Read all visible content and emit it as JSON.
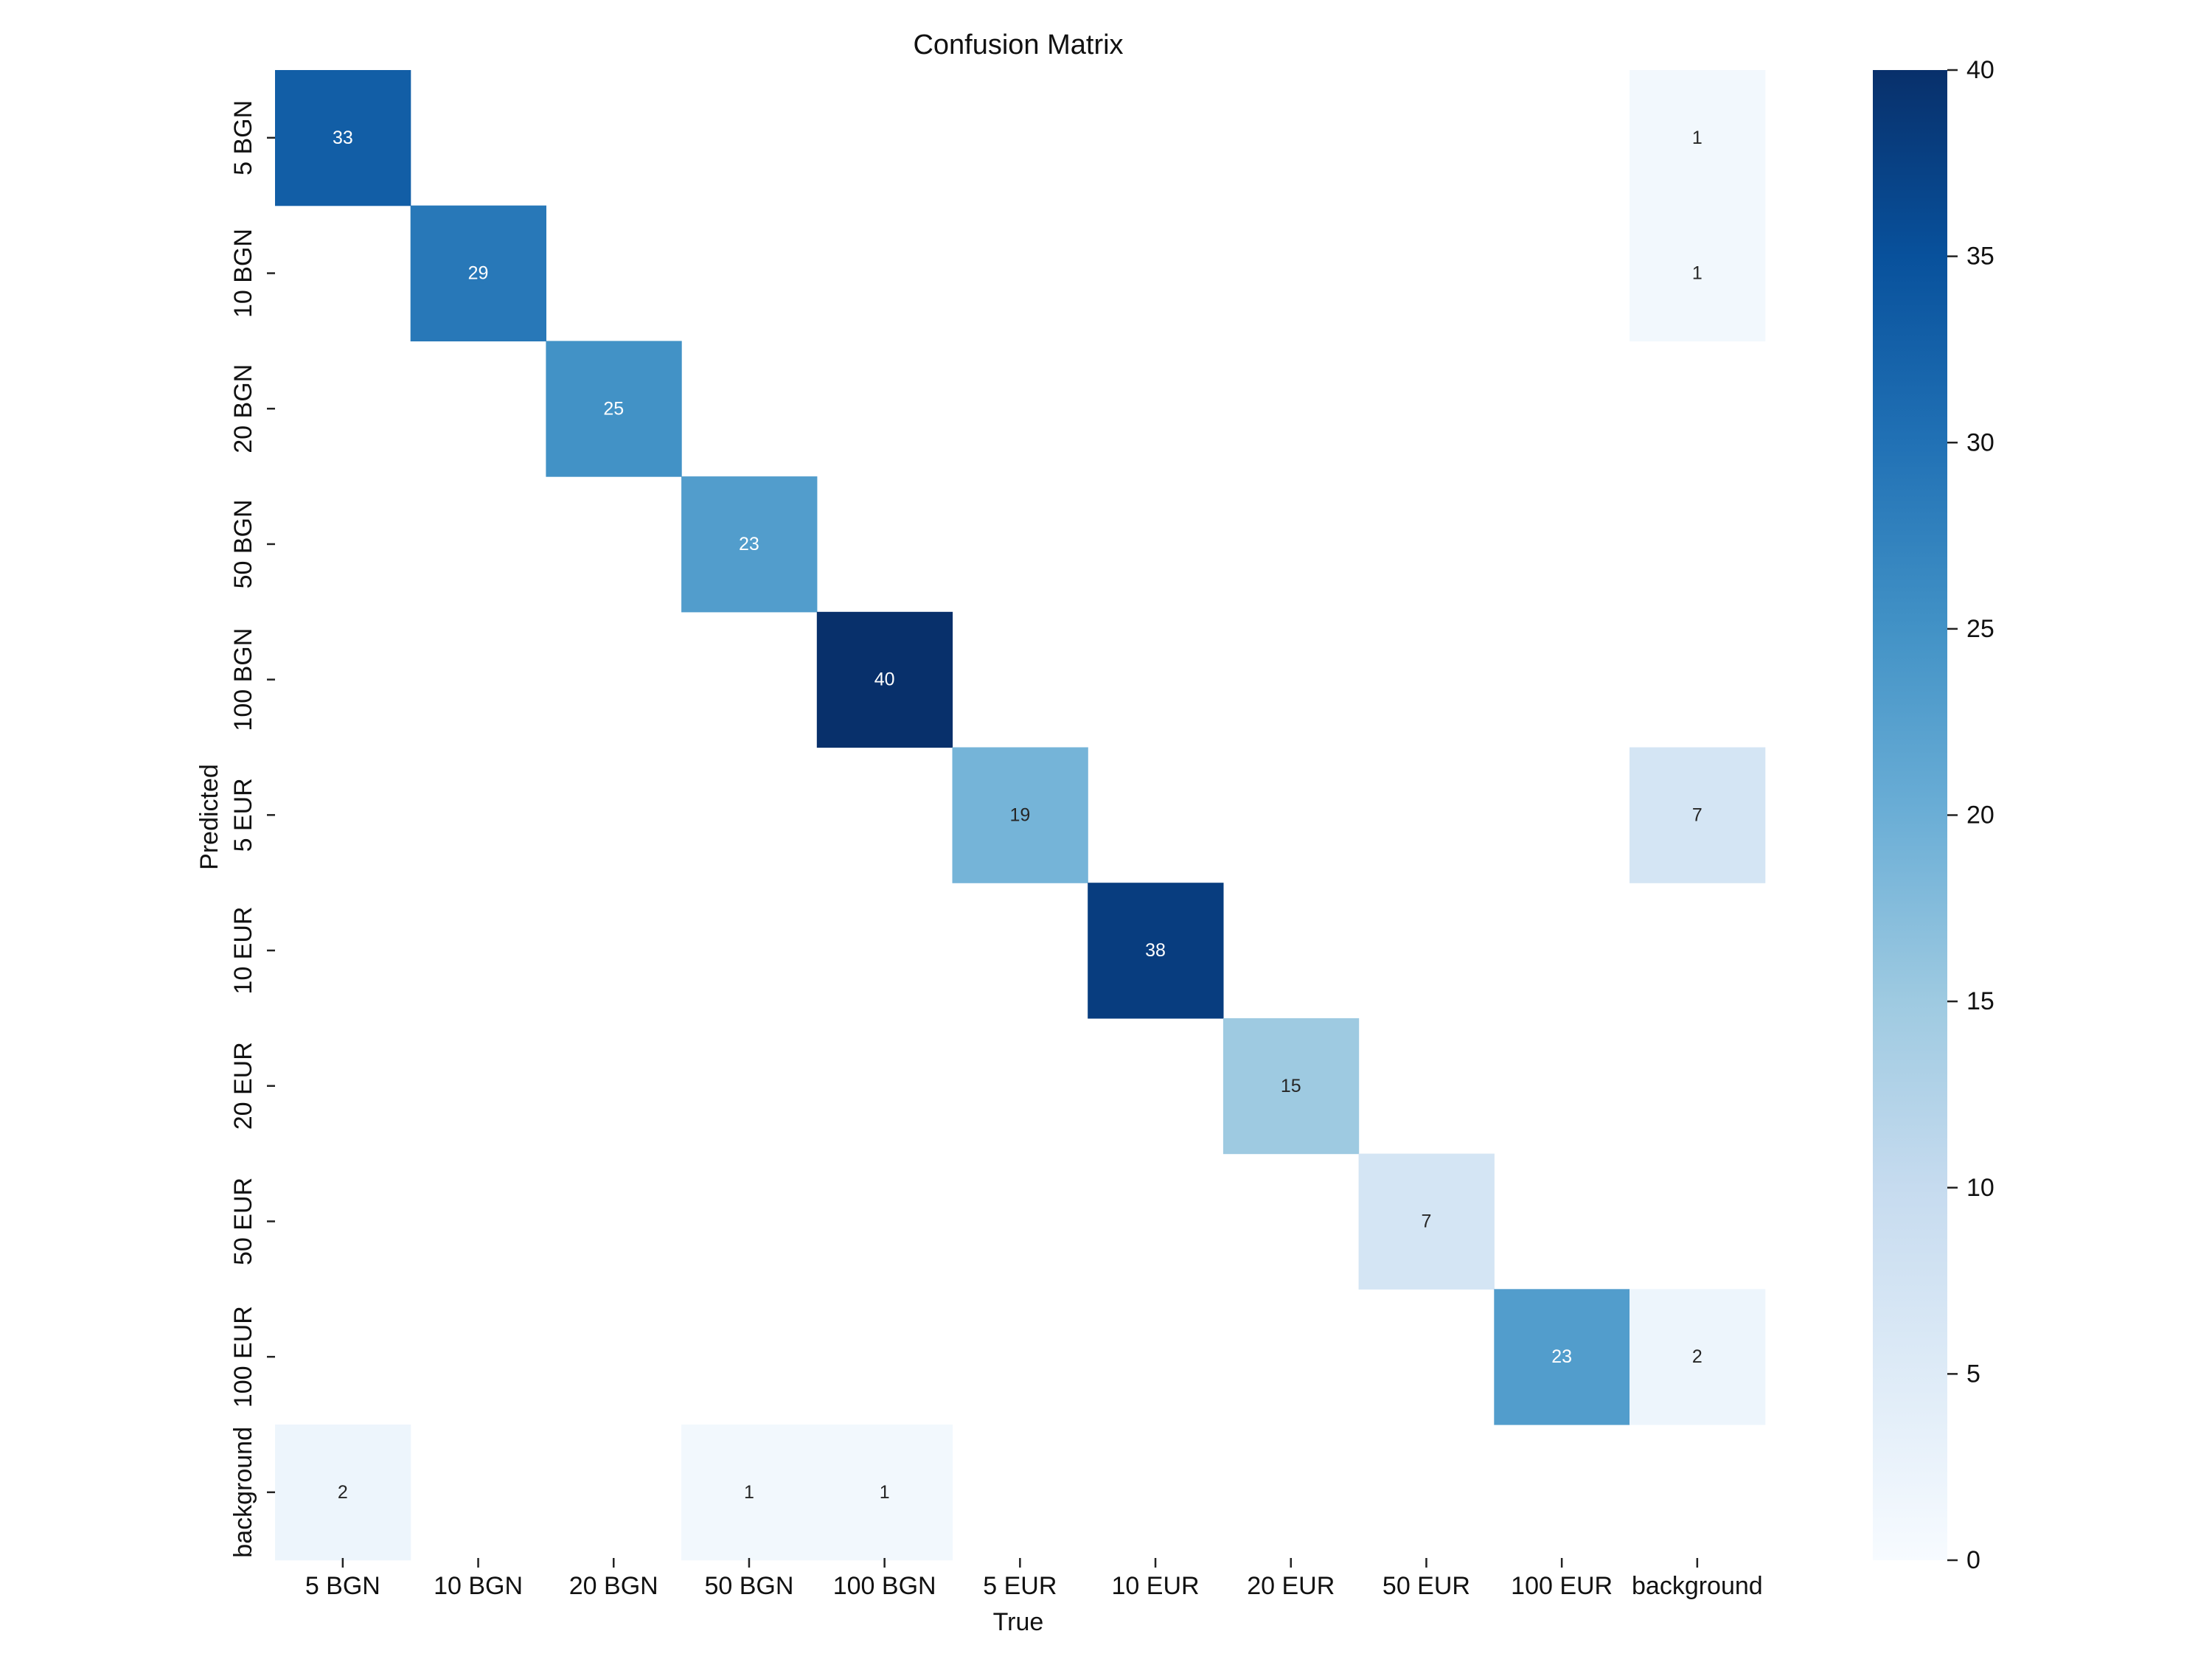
{
  "chart_data": {
    "type": "heatmap",
    "title": "Confusion Matrix",
    "xlabel": "True",
    "ylabel": "Predicted",
    "x_categories": [
      "5 BGN",
      "10 BGN",
      "20 BGN",
      "50 BGN",
      "100 BGN",
      "5 EUR",
      "10 EUR",
      "20 EUR",
      "50 EUR",
      "100 EUR",
      "background"
    ],
    "y_categories": [
      "5 BGN",
      "10 BGN",
      "20 BGN",
      "50 BGN",
      "100 BGN",
      "5 EUR",
      "10 EUR",
      "20 EUR",
      "50 EUR",
      "100 EUR",
      "background"
    ],
    "matrix": [
      [
        33,
        0,
        0,
        0,
        0,
        0,
        0,
        0,
        0,
        0,
        1
      ],
      [
        0,
        29,
        0,
        0,
        0,
        0,
        0,
        0,
        0,
        0,
        1
      ],
      [
        0,
        0,
        25,
        0,
        0,
        0,
        0,
        0,
        0,
        0,
        0
      ],
      [
        0,
        0,
        0,
        23,
        0,
        0,
        0,
        0,
        0,
        0,
        0
      ],
      [
        0,
        0,
        0,
        0,
        40,
        0,
        0,
        0,
        0,
        0,
        0
      ],
      [
        0,
        0,
        0,
        0,
        0,
        19,
        0,
        0,
        0,
        0,
        7
      ],
      [
        0,
        0,
        0,
        0,
        0,
        0,
        38,
        0,
        0,
        0,
        0
      ],
      [
        0,
        0,
        0,
        0,
        0,
        0,
        0,
        15,
        0,
        0,
        0
      ],
      [
        0,
        0,
        0,
        0,
        0,
        0,
        0,
        0,
        7,
        0,
        0
      ],
      [
        0,
        0,
        0,
        0,
        0,
        0,
        0,
        0,
        0,
        23,
        2
      ],
      [
        2,
        0,
        0,
        1,
        1,
        0,
        0,
        0,
        0,
        0,
        0
      ]
    ],
    "colorbar": {
      "colormap": "Blues",
      "range": [
        0,
        40
      ],
      "ticks": [
        0,
        5,
        10,
        15,
        20,
        25,
        30,
        35,
        40
      ]
    },
    "zero_cells_hidden": true,
    "grid": false
  }
}
